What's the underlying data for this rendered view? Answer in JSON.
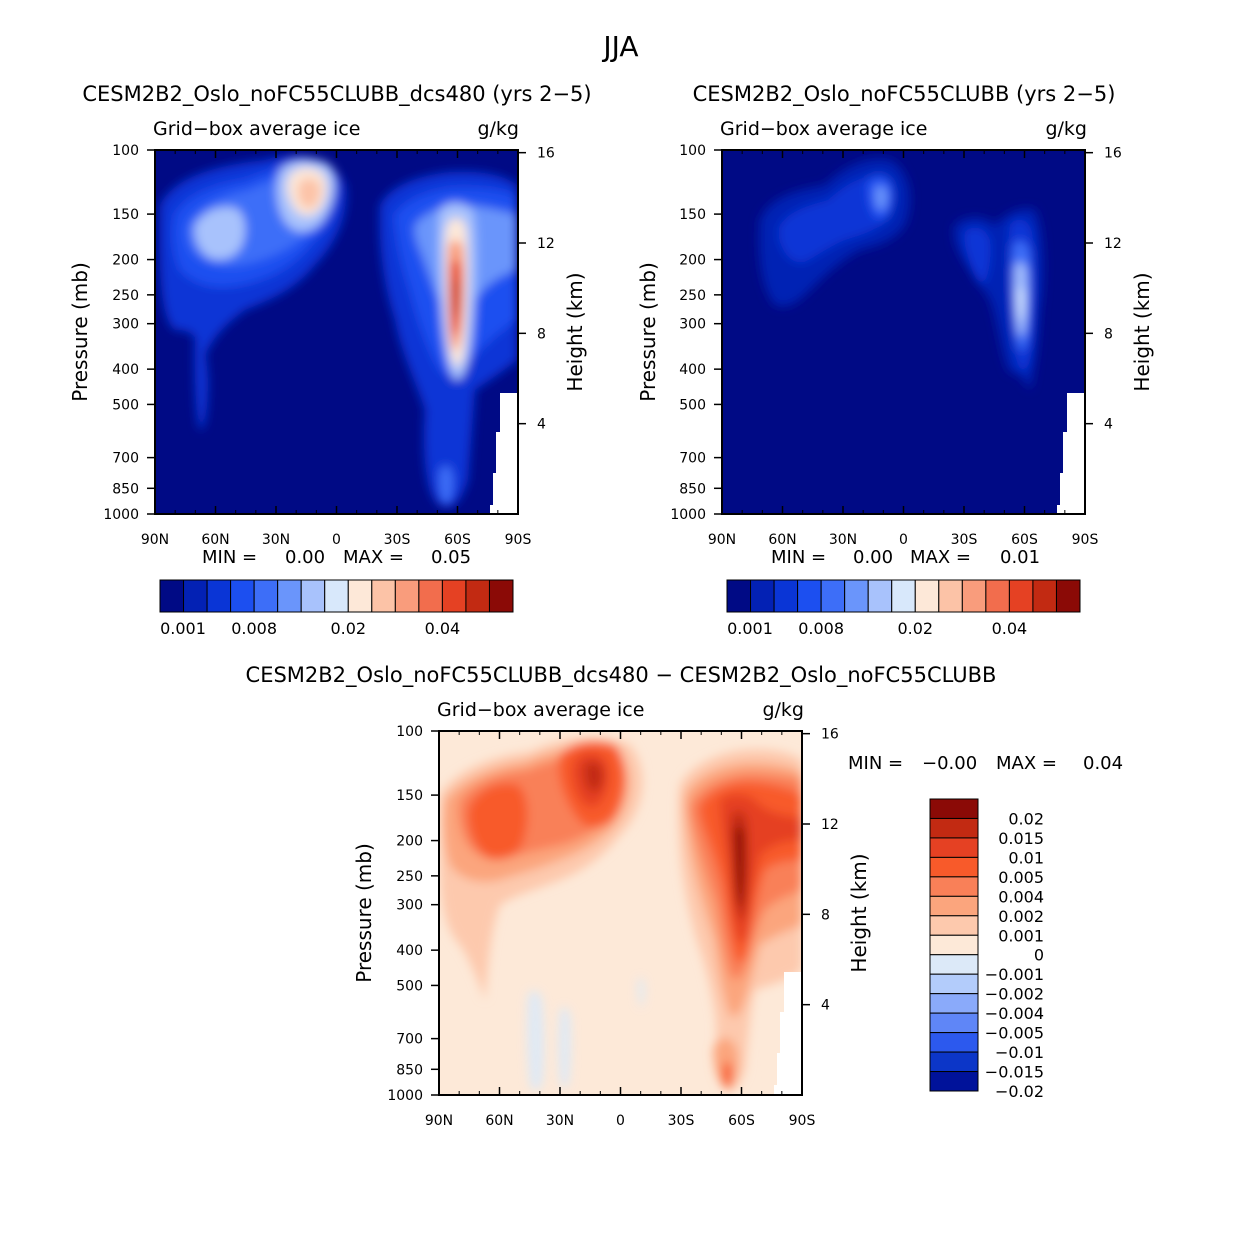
{
  "figure": {
    "title": "JJA"
  },
  "chart_data": [
    {
      "type": "heatmap",
      "title": "CESM2B2_Oslo_noFC55CLUBB_dcs480 (yrs 2−5)",
      "subtitle_left": "Grid−box average ice",
      "subtitle_right": "g/kg",
      "ylabel": "Pressure (mb)",
      "ylabel_right": "Height (km)",
      "x_tick_labels": [
        "90N",
        "60N",
        "30N",
        "0",
        "30S",
        "60S",
        "90S"
      ],
      "x_range": [
        90,
        -90
      ],
      "y_tick_labels": [
        "100",
        "150",
        "200",
        "250",
        "300",
        "400",
        "500",
        "700",
        "850",
        "1000"
      ],
      "y_range_mb": [
        100,
        1000
      ],
      "height_tick_labels": [
        "16",
        "12",
        "8",
        "4"
      ],
      "min_label": "MIN =",
      "min_value": "0.00",
      "max_label": "MAX =",
      "max_value": "0.05",
      "features": [
        {
          "lat": 20,
          "p": 200,
          "peak": 0.025,
          "note": "upper-level tropical max"
        },
        {
          "lat": 60,
          "p": 320,
          "peak": 0.012
        },
        {
          "lat": -60,
          "p": 500,
          "peak": 0.05,
          "note": "southern high-latitude max"
        }
      ],
      "colorbar": {
        "levels": [
          0.001,
          0.002,
          0.004,
          0.006,
          0.008,
          0.01,
          0.012,
          0.015,
          0.02,
          0.025,
          0.03,
          0.035,
          0.04,
          0.045,
          0.05
        ],
        "tick_labels": [
          "0.001",
          "0.008",
          "0.02",
          "0.04"
        ],
        "colors": [
          "#000a85",
          "#0321b4",
          "#0a35d6",
          "#1c4ff0",
          "#3d6ef8",
          "#6a95fb",
          "#a8c2fc",
          "#d8e8fb",
          "#fde8d8",
          "#fcc3a7",
          "#f99c7c",
          "#f26d4d",
          "#e54123",
          "#c22a12",
          "#8b0a06"
        ]
      }
    },
    {
      "type": "heatmap",
      "title": "CESM2B2_Oslo_noFC55CLUBB (yrs 2−5)",
      "subtitle_left": "Grid−box average ice",
      "subtitle_right": "g/kg",
      "ylabel": "Pressure (mb)",
      "ylabel_right": "Height (km)",
      "x_tick_labels": [
        "90N",
        "60N",
        "30N",
        "0",
        "30S",
        "60S",
        "90S"
      ],
      "x_range": [
        90,
        -90
      ],
      "y_tick_labels": [
        "100",
        "150",
        "200",
        "250",
        "300",
        "400",
        "500",
        "700",
        "850",
        "1000"
      ],
      "y_range_mb": [
        100,
        1000
      ],
      "height_tick_labels": [
        "16",
        "12",
        "8",
        "4"
      ],
      "min_label": "MIN =",
      "min_value": "0.00",
      "max_label": "MAX =",
      "max_value": "0.01",
      "features": [
        {
          "lat": 12,
          "p": 200,
          "peak": 0.004
        },
        {
          "lat": 65,
          "p": 300,
          "peak": 0.002
        },
        {
          "lat": -60,
          "p": 500,
          "peak": 0.01
        }
      ],
      "colorbar": {
        "levels": [
          0.001,
          0.002,
          0.004,
          0.006,
          0.008,
          0.01,
          0.012,
          0.015,
          0.02,
          0.025,
          0.03,
          0.035,
          0.04,
          0.045,
          0.05
        ],
        "tick_labels": [
          "0.001",
          "0.008",
          "0.02",
          "0.04"
        ],
        "colors": [
          "#000a85",
          "#0321b4",
          "#0a35d6",
          "#1c4ff0",
          "#3d6ef8",
          "#6a95fb",
          "#a8c2fc",
          "#d8e8fb",
          "#fde8d8",
          "#fcc3a7",
          "#f99c7c",
          "#f26d4d",
          "#e54123",
          "#c22a12",
          "#8b0a06"
        ]
      }
    },
    {
      "type": "heatmap",
      "title": "CESM2B2_Oslo_noFC55CLUBB_dcs480 − CESM2B2_Oslo_noFC55CLUBB",
      "subtitle_left": "Grid−box average ice",
      "subtitle_right": "g/kg",
      "ylabel": "Pressure (mb)",
      "ylabel_right": "Height (km)",
      "x_tick_labels": [
        "90N",
        "60N",
        "30N",
        "0",
        "30S",
        "60S",
        "90S"
      ],
      "x_range": [
        90,
        -90
      ],
      "y_tick_labels": [
        "100",
        "150",
        "200",
        "250",
        "300",
        "400",
        "500",
        "700",
        "850",
        "1000"
      ],
      "y_range_mb": [
        100,
        1000
      ],
      "height_tick_labels": [
        "16",
        "12",
        "8",
        "4"
      ],
      "min_label": "MIN =",
      "min_value": "−0.00",
      "max_label": "MAX =",
      "max_value": "0.04",
      "features": [
        {
          "lat": 20,
          "p": 200,
          "peak": 0.02
        },
        {
          "lat": 60,
          "p": 320,
          "peak": 0.01
        },
        {
          "lat": -60,
          "p": 500,
          "peak": 0.04
        }
      ],
      "colorbar": {
        "levels": [
          0.02,
          0.015,
          0.01,
          0.005,
          0.004,
          0.002,
          0.001,
          0,
          -0.001,
          -0.002,
          -0.004,
          -0.005,
          -0.01,
          -0.015,
          -0.02
        ],
        "tick_labels": [
          "0.02",
          "0.015",
          "0.01",
          "0.005",
          "0.004",
          "0.002",
          "0.001",
          "0",
          "−0.001",
          "−0.002",
          "−0.004",
          "−0.005",
          "−0.01",
          "−0.015",
          "−0.02"
        ],
        "colors": [
          "#8b0a06",
          "#c22a12",
          "#e54123",
          "#f85a2a",
          "#f98058",
          "#fba57d",
          "#fdc9ad",
          "#fde9d8",
          "#dce9f8",
          "#b3ccfb",
          "#8aaafa",
          "#5f86f7",
          "#2c59ee",
          "#0c36c8",
          "#00129a"
        ]
      }
    }
  ]
}
